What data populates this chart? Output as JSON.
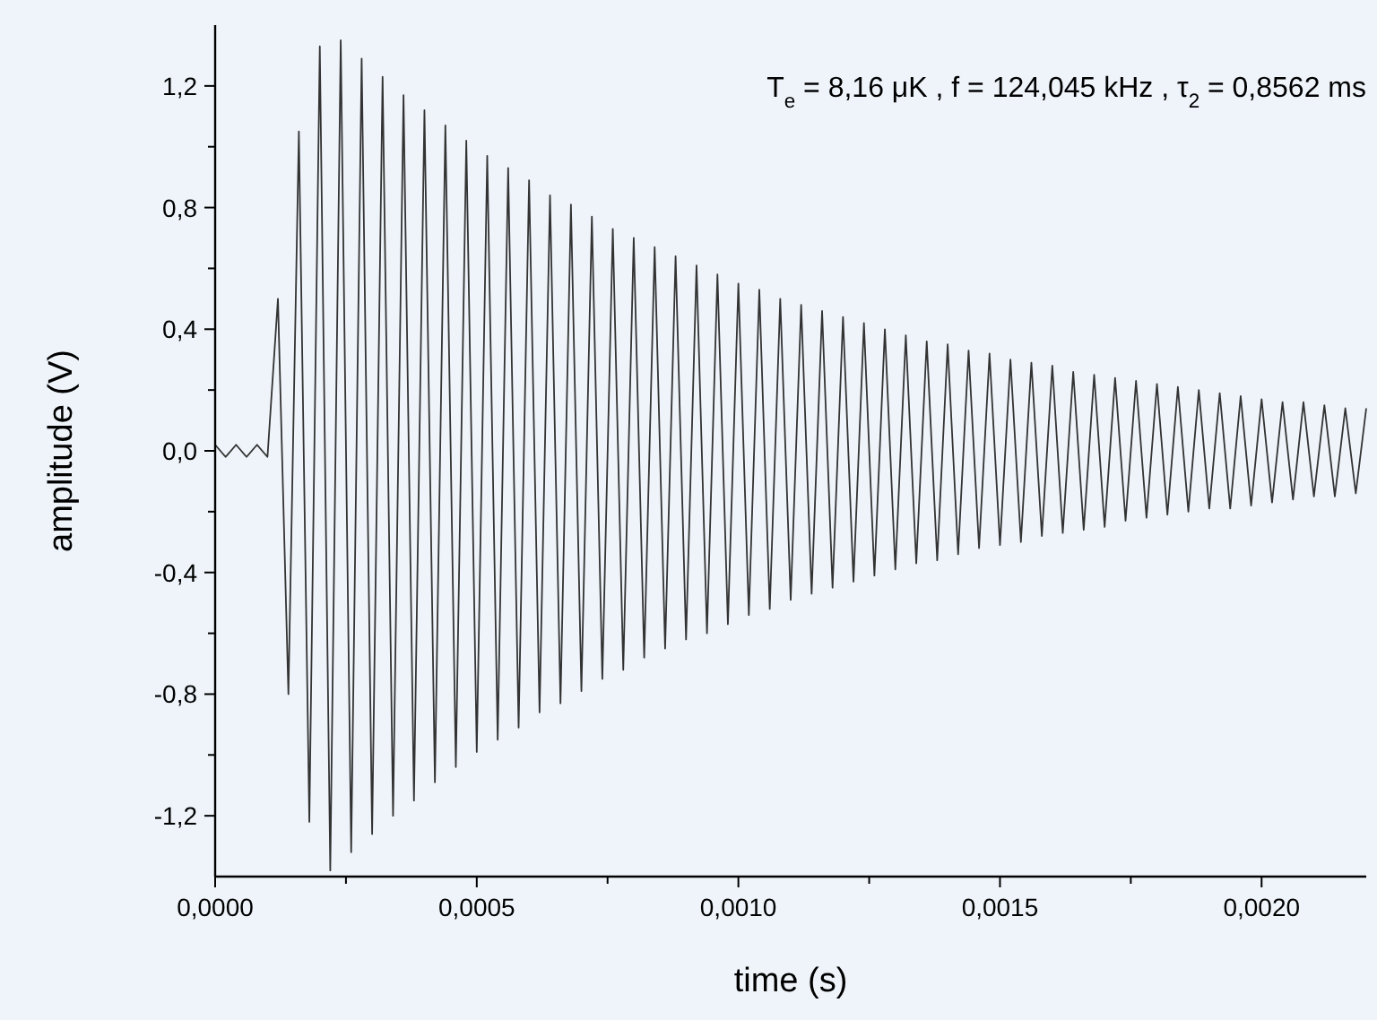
{
  "chart_data": {
    "type": "line",
    "xlabel": "time (s)",
    "ylabel": "amplitude (V)",
    "annotations": [
      "T$_{e}$ = 8,16 μK  ,  f = 124,045 kHz  ,  τ$_{2}$ = 0,8562 ms"
    ],
    "xlim": [
      0,
      0.0022
    ],
    "ylim": [
      -1.4,
      1.4
    ],
    "xticks": [
      {
        "value": 0,
        "label": "0,0000"
      },
      {
        "value": 0.00025,
        "label": null
      },
      {
        "value": 0.0005,
        "label": "0,0005"
      },
      {
        "value": 0.00075,
        "label": null
      },
      {
        "value": 0.001,
        "label": "0,0010"
      },
      {
        "value": 0.00125,
        "label": null
      },
      {
        "value": 0.0015,
        "label": "0,0015"
      },
      {
        "value": 0.00175,
        "label": null
      },
      {
        "value": 0.002,
        "label": "0,0020"
      }
    ],
    "yticks": [
      {
        "value": -1.2,
        "label": "-1,2"
      },
      {
        "value": -1,
        "label": null
      },
      {
        "value": -0.8,
        "label": "-0,8"
      },
      {
        "value": -0.6,
        "label": null
      },
      {
        "value": -0.4,
        "label": "-0,4"
      },
      {
        "value": -0.2,
        "label": null
      },
      {
        "value": 0,
        "label": "0,0"
      },
      {
        "value": 0.2,
        "label": null
      },
      {
        "value": 0.4,
        "label": "0,4"
      },
      {
        "value": 0.6,
        "label": null
      },
      {
        "value": 0.8,
        "label": "0,8"
      },
      {
        "value": 1,
        "label": null
      },
      {
        "value": 1.2,
        "label": "1,2"
      }
    ],
    "grid": false,
    "marker": "none",
    "line_style": "solid",
    "series": [
      {
        "color": "#333333",
        "x": [
          0,
          2e-05,
          4e-05,
          6e-05,
          8e-05,
          0.0001,
          0.00012,
          0.00014,
          0.00016,
          0.00018,
          0.0002,
          0.00022,
          0.00024,
          0.00026,
          0.00028,
          0.0003,
          0.00032,
          0.00034,
          0.00036,
          0.00038,
          0.0004,
          0.00042,
          0.00044,
          0.00046,
          0.00048,
          0.0005,
          0.00052,
          0.00054,
          0.00056,
          0.00058,
          0.0006,
          0.00062,
          0.00064,
          0.00066,
          0.00068,
          0.0007,
          0.00072,
          0.00074,
          0.00076,
          0.00078,
          0.0008,
          0.00082,
          0.00084,
          0.00086,
          0.00088,
          0.0009,
          0.00092,
          0.00094,
          0.00096,
          0.00098,
          0.001,
          0.00102,
          0.00104,
          0.00106,
          0.00108,
          0.0011,
          0.00112,
          0.00114,
          0.00116,
          0.00118,
          0.0012,
          0.00122,
          0.00124,
          0.00126,
          0.00128,
          0.0013,
          0.00132,
          0.00134,
          0.00136,
          0.00138,
          0.0014,
          0.00142,
          0.00144,
          0.00146,
          0.00148,
          0.0015,
          0.00152,
          0.00154,
          0.00156,
          0.00158,
          0.0016,
          0.00162,
          0.00164,
          0.00166,
          0.00168,
          0.0017,
          0.00172,
          0.00174,
          0.00176,
          0.00178,
          0.0018,
          0.00182,
          0.00184,
          0.00186,
          0.00188,
          0.0019,
          0.00192,
          0.00194,
          0.00196,
          0.00198,
          0.002,
          0.00202,
          0.00204,
          0.00206,
          0.00208,
          0.0021,
          0.00212,
          0.00214,
          0.00216,
          0.00218,
          0.0022
        ],
        "values": [
          0.02,
          -0.02,
          0.02,
          -0.02,
          0.02,
          -0.02,
          0.5,
          -0.8,
          1.05,
          -1.22,
          1.33,
          -1.38,
          1.35,
          -1.32,
          1.29,
          -1.26,
          1.23,
          -1.2,
          1.17,
          -1.15,
          1.12,
          -1.09,
          1.07,
          -1.04,
          1.02,
          -0.99,
          0.97,
          -0.95,
          0.93,
          -0.91,
          0.89,
          -0.86,
          0.84,
          -0.83,
          0.81,
          -0.79,
          0.77,
          -0.75,
          0.73,
          -0.72,
          0.7,
          -0.68,
          0.67,
          -0.65,
          0.64,
          -0.62,
          0.61,
          -0.6,
          0.58,
          -0.57,
          0.55,
          -0.54,
          0.53,
          -0.52,
          0.5,
          -0.49,
          0.48,
          -0.47,
          0.46,
          -0.45,
          0.44,
          -0.43,
          0.42,
          -0.41,
          0.4,
          -0.39,
          0.38,
          -0.37,
          0.36,
          -0.36,
          0.35,
          -0.34,
          0.33,
          -0.32,
          0.32,
          -0.31,
          0.3,
          -0.3,
          0.29,
          -0.28,
          0.28,
          -0.27,
          0.26,
          -0.26,
          0.25,
          -0.25,
          0.24,
          -0.23,
          0.23,
          -0.22,
          0.22,
          -0.21,
          0.21,
          -0.2,
          0.2,
          -0.19,
          0.19,
          -0.19,
          0.18,
          -0.18,
          0.17,
          -0.17,
          0.16,
          -0.16,
          0.16,
          -0.15,
          0.15,
          -0.15,
          0.14,
          -0.14,
          0.14
        ]
      }
    ]
  }
}
